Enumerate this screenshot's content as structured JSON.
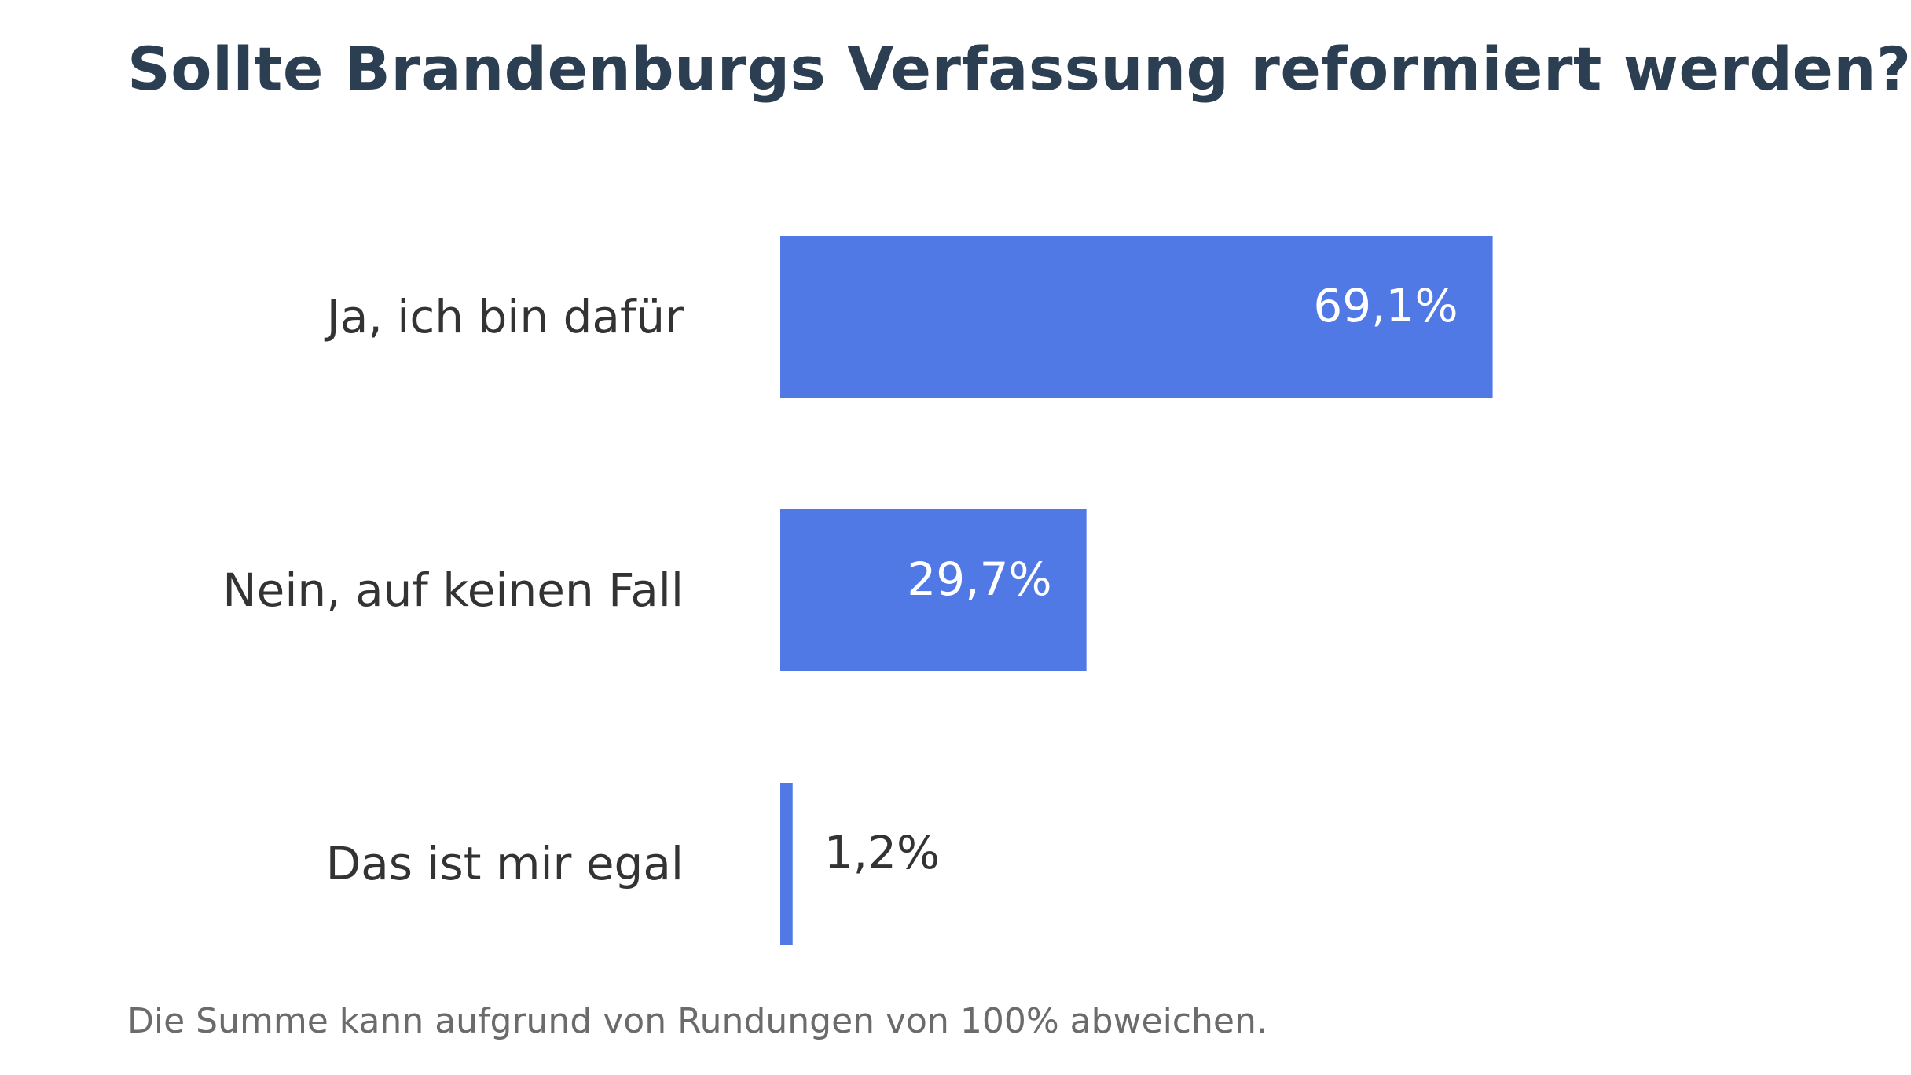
{
  "chart_data": {
    "type": "bar",
    "orientation": "horizontal",
    "title": "Sollte Brandenburgs Verfassung reformiert werden?",
    "categories": [
      "Ja, ich bin dafür",
      "Nein, auf keinen Fall",
      "Das ist mir egal"
    ],
    "values": [
      69.1,
      29.7,
      1.2
    ],
    "value_labels": [
      "69,1%",
      "29,7%",
      "1,2%"
    ],
    "unit": "%",
    "xlim": [
      0,
      100
    ],
    "grid": false,
    "legend": "none",
    "bar_color": "#5079e6",
    "inside_label_color": "#ffffff",
    "outside_label_color": "#333333",
    "footnote": "Die Summe kann aufgrund von Rundungen von 100% abweichen."
  }
}
